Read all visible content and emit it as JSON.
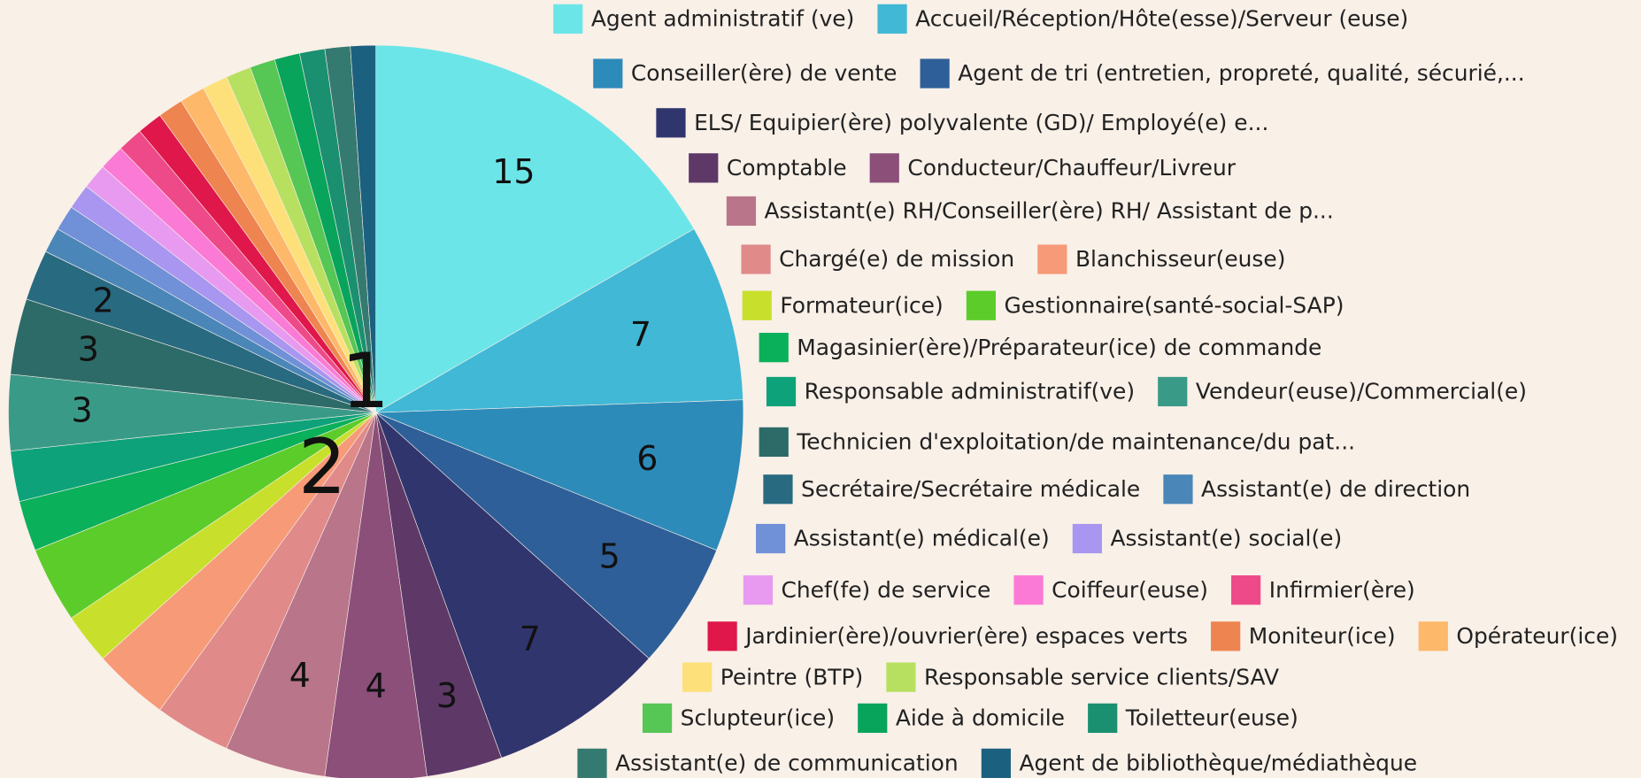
{
  "chart_data": {
    "type": "pie",
    "categories": [
      "Agent administratif (ve)",
      "Accueil/Réception/Hôte(esse)/Serveur (euse)",
      "Conseiller(ère) de vente",
      "Agent de tri (entretien, propreté, qualité, sécurié,...",
      "ELS/ Equipier(ère) polyvalente (GD)/ Employé(e) e...",
      "Comptable",
      "Conducteur/Chauffeur/Livreur",
      "Assistant(e) RH/Conseiller(ère) RH/ Assistant de p...",
      "Chargé(e) de mission",
      "Blanchisseur(euse)",
      "Formateur(ice)",
      "Gestionnaire(santé-social-SAP)",
      "Magasinier(ère)/Préparateur(ice) de commande",
      "Responsable administratif(ve)",
      "Vendeur(euse)/Commercial(e)",
      "Technicien d'exploitation/de maintenance/du pat...",
      "Secrétaire/Secrétaire médicale",
      "Assistant(e) de direction",
      "Assistant(e) médical(e)",
      "Assistant(e) social(e)",
      "Chef(fe) de service",
      "Coiffeur(euse)",
      "Infirmier(ère)",
      "Jardinier(ère)/ouvrier(ère) espaces verts",
      "Moniteur(ice)",
      "Opérateur(ice)",
      "Peintre (BTP)",
      "Responsable service clients/SAV",
      "Sclupteur(ice)",
      "Aide à domicile",
      "Toiletteur(euse)",
      "Assistant(e) de communication",
      "Agent de bibliothèque/médiathèque"
    ],
    "values": [
      15,
      7,
      6,
      5,
      7,
      3,
      4,
      4,
      3,
      3,
      2,
      3,
      2,
      2,
      3,
      3,
      2,
      1,
      1,
      1,
      1,
      1,
      1,
      1,
      1,
      1,
      1,
      1,
      1,
      1,
      1,
      1,
      1
    ],
    "value_labels": [
      "15",
      "7",
      "6",
      "5",
      "7",
      "3",
      "4",
      "4",
      null,
      null,
      null,
      null,
      null,
      null,
      "3",
      "3",
      "2",
      null,
      null,
      null,
      null,
      null,
      null,
      null,
      null,
      null,
      null,
      null,
      null,
      null,
      null,
      null,
      null
    ],
    "colors": [
      "#6ce5e8",
      "#41b8d5",
      "#2d8bba",
      "#2f5f98",
      "#31356e",
      "#5e3967",
      "#8b4f7a",
      "#b9758a",
      "#e08a8a",
      "#f79a78",
      "#c8e02c",
      "#5ccc2a",
      "#0bb05a",
      "#0ea27a",
      "#3a9a88",
      "#2d6b68",
      "#286a80",
      "#4a86b8",
      "#7090d8",
      "#a896f0",
      "#e89af0",
      "#fb7ad6",
      "#ee4a8a",
      "#e0174a",
      "#ee8450",
      "#fdb86a",
      "#fde07a",
      "#b8e060",
      "#56c655",
      "#08a45c",
      "#1a9070",
      "#357a70",
      "#1c6080"
    ],
    "annotations": [
      "1",
      "2"
    ]
  }
}
